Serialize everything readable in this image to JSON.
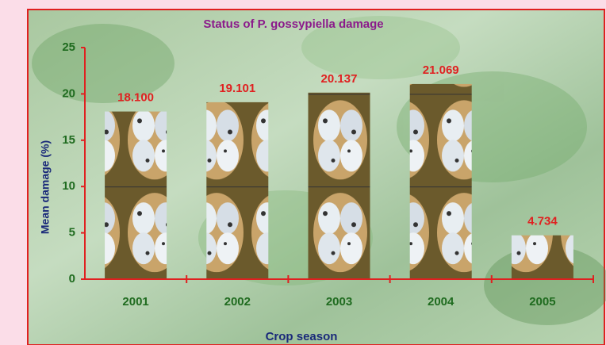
{
  "chart_data": {
    "type": "bar",
    "title": "Status of P. gossypiella damage",
    "x_label": "Crop season",
    "y_label": "Mean damage (%)",
    "categories": [
      "2001",
      "2002",
      "2003",
      "2004",
      "2005"
    ],
    "values": [
      18.1,
      19.101,
      20.137,
      21.069,
      4.734
    ],
    "value_labels": [
      "18.100",
      "19.101",
      "20.137",
      "21.069",
      "4.734"
    ],
    "ylim": [
      0,
      25
    ],
    "yticks": [
      0,
      5,
      10,
      15,
      20,
      25
    ],
    "grid": false
  }
}
